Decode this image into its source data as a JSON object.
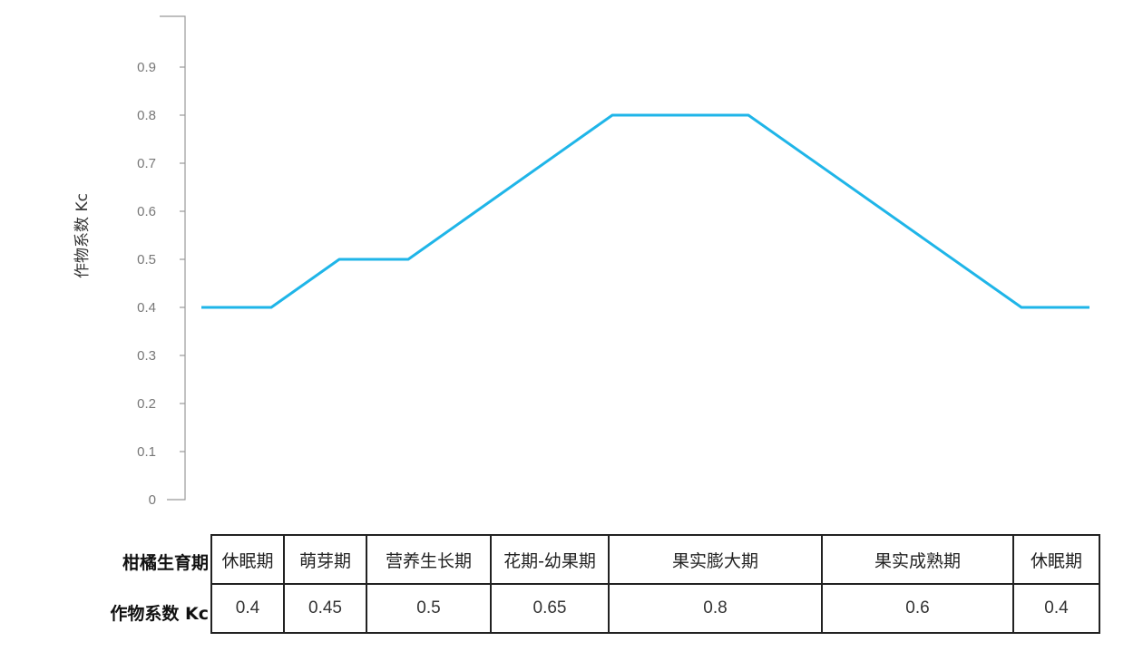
{
  "chart_data": {
    "type": "line",
    "ylabel": "作物系数 Kc",
    "xlabel": "",
    "ylim": [
      0,
      1.0
    ],
    "yticks": [
      "0",
      "0.1",
      "0.2",
      "0.3",
      "0.4",
      "0.5",
      "0.6",
      "0.7",
      "0.8",
      "0.9"
    ],
    "series": [
      {
        "values": [
          0.4,
          0.4,
          0.5,
          0.5,
          0.8,
          0.8,
          0.4,
          0.4
        ]
      }
    ],
    "grid": false,
    "color": "#1fb5e8"
  },
  "table": {
    "row_headers": [
      "柑橘生育期",
      "作物系数 Kc"
    ],
    "stages": [
      "休眠期",
      "萌芽期",
      "营养生长期",
      "花期-幼果期",
      "果实膨大期",
      "果实成熟期",
      "休眠期"
    ],
    "kc": [
      "0.4",
      "0.45",
      "0.5",
      "0.65",
      "0.8",
      "0.6",
      "0.4"
    ]
  }
}
